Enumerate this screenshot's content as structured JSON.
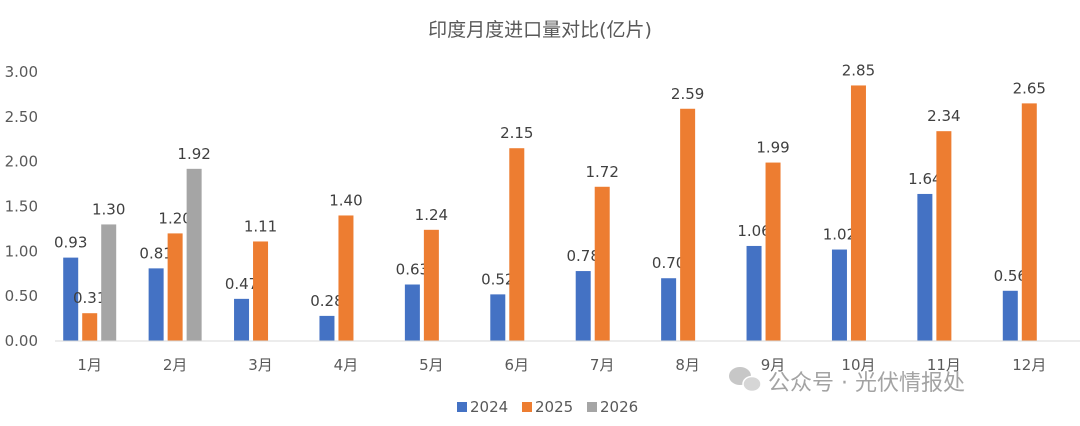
{
  "chart_data": {
    "type": "bar",
    "title": "印度月度进口量对比(亿片)",
    "categories": [
      "1月",
      "2月",
      "3月",
      "4月",
      "5月",
      "6月",
      "7月",
      "8月",
      "9月",
      "10月",
      "11月",
      "12月"
    ],
    "series": [
      {
        "name": "2024",
        "color": "#4472C4",
        "values": [
          0.93,
          0.81,
          0.47,
          0.28,
          0.63,
          0.52,
          0.78,
          0.7,
          1.06,
          1.02,
          1.64,
          0.56
        ]
      },
      {
        "name": "2025",
        "color": "#ED7D31",
        "values": [
          0.31,
          1.2,
          1.11,
          1.4,
          1.24,
          2.15,
          1.72,
          2.59,
          1.99,
          2.85,
          2.34,
          2.65
        ]
      },
      {
        "name": "2026",
        "color": "#A5A5A5",
        "values": [
          1.3,
          1.92,
          null,
          null,
          null,
          null,
          null,
          null,
          null,
          null,
          null,
          null
        ]
      }
    ],
    "ylim": [
      0,
      3
    ],
    "yticks": [
      "0.00",
      "0.50",
      "1.00",
      "1.50",
      "2.00",
      "2.50",
      "3.00"
    ],
    "grid": false,
    "legend": "bottom"
  },
  "watermark": "公众号 · 光伏情报处"
}
